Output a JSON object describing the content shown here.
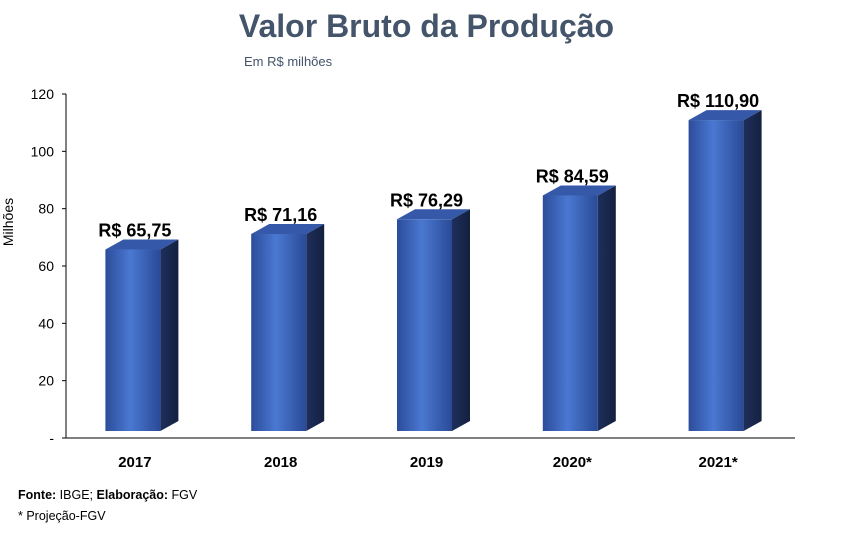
{
  "chart_data": {
    "type": "bar",
    "title": "Valor Bruto da Produção",
    "subtitle": "Em R$ milhões",
    "ylabel": "Milhões",
    "xlabel": "",
    "ylim": [
      0,
      120
    ],
    "yticks": [
      {
        "value": 0,
        "label": "-"
      },
      {
        "value": 20,
        "label": "20"
      },
      {
        "value": 40,
        "label": "40"
      },
      {
        "value": 60,
        "label": "60"
      },
      {
        "value": 80,
        "label": "80"
      },
      {
        "value": 100,
        "label": "100"
      },
      {
        "value": 120,
        "label": "120"
      }
    ],
    "categories": [
      "2017",
      "2018",
      "2019",
      "2020*",
      "2021*"
    ],
    "values": [
      65.75,
      71.16,
      76.29,
      84.59,
      110.9
    ],
    "data_labels": [
      "R$ 65,75",
      "R$ 71,16",
      "R$ 76,29",
      "R$ 84,59",
      "R$ 110,90"
    ],
    "grid": false,
    "legend": "none",
    "colors": {
      "bar_front": "#3f68c0",
      "bar_side": "#1b2a52",
      "bar_top": "#2f4f9e"
    }
  },
  "footer": {
    "source_label": "Fonte:",
    "source_value": " IBGE; ",
    "credit_label": "Elaboração:",
    "credit_value": " FGV",
    "note": "* Projeção-FGV"
  }
}
